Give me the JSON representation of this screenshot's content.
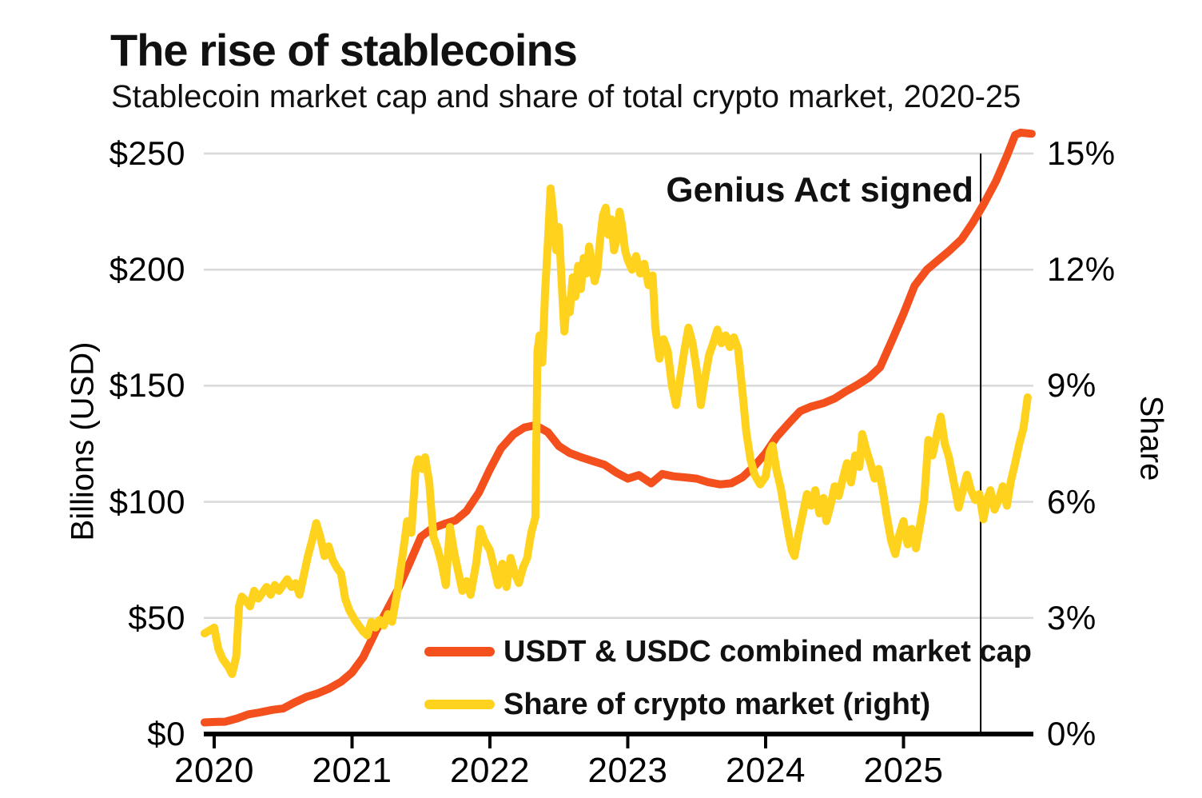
{
  "title": "The rise of stablecoins",
  "subtitle": "Stablecoin market cap and share of total crypto market, 2020-25",
  "axes": {
    "left_title": "Billions (USD)",
    "right_title": "Share"
  },
  "colors": {
    "marketcap_line": "#F4501E",
    "share_line": "#FFD21E",
    "gridline": "#D9D9D9",
    "axis": "#000000",
    "annotation_line": "#000000"
  },
  "chart_data": {
    "type": "line",
    "title": "The rise of stablecoins",
    "subtitle": "Stablecoin market cap and share of total crypto market, 2020-25",
    "x_range": [
      2019.93,
      2025.93
    ],
    "x_tick_years": [
      2020,
      2021,
      2022,
      2023,
      2024,
      2025
    ],
    "x_tick_labels": [
      "2020",
      "2021",
      "2022",
      "2023",
      "2024",
      "2025"
    ],
    "grid": "horizontal",
    "legend_position": "inside-lower-center",
    "left_axis": {
      "label": "Billions (USD)",
      "range": [
        0,
        250
      ],
      "ticks": [
        0,
        50,
        100,
        150,
        200,
        250
      ],
      "tick_labels": [
        "$0",
        "$50",
        "$100",
        "$150",
        "$200",
        "$250"
      ]
    },
    "right_axis": {
      "label": "Share",
      "range": [
        0,
        15
      ],
      "ticks": [
        0,
        3,
        6,
        9,
        12,
        15
      ],
      "tick_labels": [
        "0%",
        "3%",
        "6%",
        "9%",
        "12%",
        "15%"
      ]
    },
    "annotation": {
      "text": "Genius Act signed",
      "x_year": 2025.56
    },
    "series": [
      {
        "name": "USDT & USDC combined market cap",
        "axis": "left",
        "color": "#F4501E",
        "units": "billions USD",
        "points": [
          [
            2019.93,
            5
          ],
          [
            2020.0,
            5.2
          ],
          [
            2020.08,
            5.3
          ],
          [
            2020.17,
            6.8
          ],
          [
            2020.25,
            8.5
          ],
          [
            2020.33,
            9.3
          ],
          [
            2020.42,
            10.4
          ],
          [
            2020.5,
            11
          ],
          [
            2020.58,
            13.5
          ],
          [
            2020.67,
            16
          ],
          [
            2020.75,
            17.5
          ],
          [
            2020.83,
            19.5
          ],
          [
            2020.92,
            22.5
          ],
          [
            2021.0,
            26.5
          ],
          [
            2021.08,
            33
          ],
          [
            2021.17,
            44
          ],
          [
            2021.25,
            53
          ],
          [
            2021.33,
            62
          ],
          [
            2021.42,
            74
          ],
          [
            2021.5,
            85
          ],
          [
            2021.58,
            88.5
          ],
          [
            2021.67,
            90.5
          ],
          [
            2021.75,
            92
          ],
          [
            2021.83,
            96
          ],
          [
            2021.92,
            104
          ],
          [
            2022.0,
            114
          ],
          [
            2022.08,
            123
          ],
          [
            2022.17,
            129
          ],
          [
            2022.25,
            132
          ],
          [
            2022.33,
            133
          ],
          [
            2022.42,
            130
          ],
          [
            2022.5,
            124
          ],
          [
            2022.58,
            121
          ],
          [
            2022.67,
            119
          ],
          [
            2022.75,
            117.5
          ],
          [
            2022.83,
            116
          ],
          [
            2022.92,
            112.5
          ],
          [
            2023.0,
            110
          ],
          [
            2023.08,
            111.5
          ],
          [
            2023.17,
            108
          ],
          [
            2023.25,
            112
          ],
          [
            2023.33,
            111
          ],
          [
            2023.42,
            110.5
          ],
          [
            2023.5,
            110
          ],
          [
            2023.58,
            108.5
          ],
          [
            2023.67,
            107.5
          ],
          [
            2023.75,
            108
          ],
          [
            2023.83,
            110.5
          ],
          [
            2023.92,
            115.5
          ],
          [
            2024.0,
            121
          ],
          [
            2024.08,
            128
          ],
          [
            2024.17,
            134
          ],
          [
            2024.25,
            139
          ],
          [
            2024.33,
            141
          ],
          [
            2024.42,
            142.5
          ],
          [
            2024.5,
            144.5
          ],
          [
            2024.58,
            147.5
          ],
          [
            2024.67,
            150.5
          ],
          [
            2024.75,
            153.5
          ],
          [
            2024.83,
            158
          ],
          [
            2024.92,
            170
          ],
          [
            2025.0,
            181
          ],
          [
            2025.08,
            193
          ],
          [
            2025.17,
            200
          ],
          [
            2025.25,
            204
          ],
          [
            2025.33,
            208
          ],
          [
            2025.42,
            213
          ],
          [
            2025.5,
            220
          ],
          [
            2025.58,
            228
          ],
          [
            2025.67,
            238
          ],
          [
            2025.75,
            249
          ],
          [
            2025.81,
            258
          ],
          [
            2025.85,
            259
          ],
          [
            2025.93,
            258.5
          ]
        ]
      },
      {
        "name": "Share of crypto market (right)",
        "axis": "right",
        "color": "#FFD21E",
        "units": "percent",
        "points": [
          [
            2019.93,
            2.6
          ],
          [
            2020.0,
            2.75
          ],
          [
            2020.03,
            2.2
          ],
          [
            2020.06,
            1.95
          ],
          [
            2020.1,
            1.75
          ],
          [
            2020.13,
            1.55
          ],
          [
            2020.16,
            2.0
          ],
          [
            2020.18,
            3.3
          ],
          [
            2020.2,
            3.55
          ],
          [
            2020.23,
            3.45
          ],
          [
            2020.26,
            3.3
          ],
          [
            2020.29,
            3.7
          ],
          [
            2020.32,
            3.5
          ],
          [
            2020.35,
            3.65
          ],
          [
            2020.38,
            3.8
          ],
          [
            2020.41,
            3.6
          ],
          [
            2020.44,
            3.85
          ],
          [
            2020.47,
            3.7
          ],
          [
            2020.5,
            3.85
          ],
          [
            2020.53,
            4.0
          ],
          [
            2020.56,
            3.8
          ],
          [
            2020.59,
            3.9
          ],
          [
            2020.62,
            3.6
          ],
          [
            2020.65,
            4.1
          ],
          [
            2020.68,
            4.6
          ],
          [
            2020.71,
            5.0
          ],
          [
            2020.74,
            5.45
          ],
          [
            2020.77,
            5.1
          ],
          [
            2020.8,
            4.6
          ],
          [
            2020.83,
            4.85
          ],
          [
            2020.86,
            4.5
          ],
          [
            2020.89,
            4.3
          ],
          [
            2020.92,
            4.15
          ],
          [
            2020.95,
            3.5
          ],
          [
            2020.98,
            3.2
          ],
          [
            2021.02,
            2.95
          ],
          [
            2021.05,
            2.8
          ],
          [
            2021.08,
            2.65
          ],
          [
            2021.11,
            2.55
          ],
          [
            2021.14,
            2.9
          ],
          [
            2021.17,
            2.75
          ],
          [
            2021.2,
            2.95
          ],
          [
            2021.23,
            2.8
          ],
          [
            2021.26,
            3.1
          ],
          [
            2021.29,
            2.9
          ],
          [
            2021.33,
            3.7
          ],
          [
            2021.37,
            4.7
          ],
          [
            2021.4,
            5.5
          ],
          [
            2021.43,
            5.2
          ],
          [
            2021.46,
            6.8
          ],
          [
            2021.48,
            7.1
          ],
          [
            2021.51,
            6.85
          ],
          [
            2021.53,
            7.15
          ],
          [
            2021.56,
            6.5
          ],
          [
            2021.59,
            5.1
          ],
          [
            2021.62,
            4.8
          ],
          [
            2021.65,
            4.4
          ],
          [
            2021.68,
            3.85
          ],
          [
            2021.71,
            5.35
          ],
          [
            2021.74,
            4.7
          ],
          [
            2021.77,
            4.2
          ],
          [
            2021.8,
            3.7
          ],
          [
            2021.83,
            3.95
          ],
          [
            2021.86,
            3.6
          ],
          [
            2021.9,
            4.4
          ],
          [
            2021.93,
            5.3
          ],
          [
            2021.96,
            5.0
          ],
          [
            2022.0,
            4.75
          ],
          [
            2022.03,
            4.3
          ],
          [
            2022.06,
            3.85
          ],
          [
            2022.09,
            4.4
          ],
          [
            2022.12,
            3.8
          ],
          [
            2022.15,
            4.55
          ],
          [
            2022.18,
            4.15
          ],
          [
            2022.21,
            3.9
          ],
          [
            2022.24,
            4.3
          ],
          [
            2022.27,
            4.55
          ],
          [
            2022.3,
            5.2
          ],
          [
            2022.33,
            5.6
          ],
          [
            2022.345,
            9.9
          ],
          [
            2022.36,
            10.3
          ],
          [
            2022.38,
            9.6
          ],
          [
            2022.4,
            11.4
          ],
          [
            2022.42,
            12.7
          ],
          [
            2022.44,
            14.1
          ],
          [
            2022.46,
            13.4
          ],
          [
            2022.48,
            12.5
          ],
          [
            2022.5,
            13.1
          ],
          [
            2022.52,
            11.7
          ],
          [
            2022.54,
            10.4
          ],
          [
            2022.56,
            11.2
          ],
          [
            2022.58,
            10.9
          ],
          [
            2022.6,
            11.8
          ],
          [
            2022.62,
            11.3
          ],
          [
            2022.64,
            12.1
          ],
          [
            2022.66,
            11.5
          ],
          [
            2022.68,
            12.3
          ],
          [
            2022.7,
            11.9
          ],
          [
            2022.72,
            12.6
          ],
          [
            2022.74,
            12.1
          ],
          [
            2022.76,
            11.7
          ],
          [
            2022.78,
            12.0
          ],
          [
            2022.8,
            12.8
          ],
          [
            2022.82,
            13.4
          ],
          [
            2022.84,
            13.6
          ],
          [
            2022.86,
            12.9
          ],
          [
            2022.88,
            13.3
          ],
          [
            2022.9,
            12.5
          ],
          [
            2022.92,
            12.8
          ],
          [
            2022.94,
            13.5
          ],
          [
            2022.96,
            13.1
          ],
          [
            2022.98,
            12.5
          ],
          [
            2023.0,
            12.25
          ],
          [
            2023.03,
            12.0
          ],
          [
            2023.06,
            12.35
          ],
          [
            2023.09,
            11.9
          ],
          [
            2023.12,
            12.15
          ],
          [
            2023.15,
            11.6
          ],
          [
            2023.18,
            11.85
          ],
          [
            2023.2,
            10.5
          ],
          [
            2023.23,
            9.7
          ],
          [
            2023.26,
            10.2
          ],
          [
            2023.29,
            9.9
          ],
          [
            2023.32,
            9.0
          ],
          [
            2023.35,
            8.5
          ],
          [
            2023.38,
            9.2
          ],
          [
            2023.41,
            9.9
          ],
          [
            2023.44,
            10.5
          ],
          [
            2023.47,
            10.1
          ],
          [
            2023.5,
            9.4
          ],
          [
            2023.53,
            8.5
          ],
          [
            2023.56,
            9.2
          ],
          [
            2023.59,
            9.8
          ],
          [
            2023.62,
            10.1
          ],
          [
            2023.65,
            10.45
          ],
          [
            2023.68,
            10.1
          ],
          [
            2023.71,
            10.3
          ],
          [
            2023.74,
            10.0
          ],
          [
            2023.77,
            10.25
          ],
          [
            2023.8,
            9.95
          ],
          [
            2023.83,
            8.9
          ],
          [
            2023.86,
            7.8
          ],
          [
            2023.89,
            7.1
          ],
          [
            2023.92,
            6.7
          ],
          [
            2023.96,
            6.45
          ],
          [
            2024.0,
            6.65
          ],
          [
            2024.03,
            7.3
          ],
          [
            2024.05,
            7.45
          ],
          [
            2024.08,
            6.8
          ],
          [
            2024.11,
            6.35
          ],
          [
            2024.14,
            5.7
          ],
          [
            2024.17,
            5.1
          ],
          [
            2024.19,
            4.75
          ],
          [
            2024.21,
            4.6
          ],
          [
            2024.24,
            5.2
          ],
          [
            2024.27,
            5.7
          ],
          [
            2024.3,
            6.2
          ],
          [
            2024.33,
            5.9
          ],
          [
            2024.36,
            6.3
          ],
          [
            2024.39,
            5.7
          ],
          [
            2024.42,
            6.1
          ],
          [
            2024.44,
            5.5
          ],
          [
            2024.47,
            5.9
          ],
          [
            2024.5,
            6.4
          ],
          [
            2024.53,
            6.15
          ],
          [
            2024.56,
            6.6
          ],
          [
            2024.59,
            7.0
          ],
          [
            2024.62,
            6.5
          ],
          [
            2024.65,
            7.2
          ],
          [
            2024.68,
            6.9
          ],
          [
            2024.7,
            7.75
          ],
          [
            2024.73,
            7.35
          ],
          [
            2024.76,
            7.0
          ],
          [
            2024.79,
            6.6
          ],
          [
            2024.82,
            6.85
          ],
          [
            2024.85,
            6.3
          ],
          [
            2024.88,
            5.6
          ],
          [
            2024.91,
            5.0
          ],
          [
            2024.94,
            4.65
          ],
          [
            2024.97,
            5.15
          ],
          [
            2025.0,
            5.5
          ],
          [
            2025.03,
            4.9
          ],
          [
            2025.06,
            5.3
          ],
          [
            2025.09,
            4.8
          ],
          [
            2025.12,
            5.4
          ],
          [
            2025.15,
            6.05
          ],
          [
            2025.18,
            7.6
          ],
          [
            2025.21,
            7.2
          ],
          [
            2025.24,
            7.7
          ],
          [
            2025.27,
            8.2
          ],
          [
            2025.3,
            7.5
          ],
          [
            2025.33,
            7.15
          ],
          [
            2025.36,
            6.6
          ],
          [
            2025.4,
            5.85
          ],
          [
            2025.43,
            6.3
          ],
          [
            2025.46,
            6.7
          ],
          [
            2025.49,
            6.3
          ],
          [
            2025.52,
            6.05
          ],
          [
            2025.55,
            6.2
          ],
          [
            2025.58,
            5.55
          ],
          [
            2025.61,
            6.1
          ],
          [
            2025.63,
            6.3
          ],
          [
            2025.66,
            5.8
          ],
          [
            2025.69,
            6.05
          ],
          [
            2025.72,
            6.4
          ],
          [
            2025.75,
            5.9
          ],
          [
            2025.78,
            6.55
          ],
          [
            2025.81,
            7.0
          ],
          [
            2025.84,
            7.5
          ],
          [
            2025.87,
            7.9
          ],
          [
            2025.9,
            8.7
          ]
        ]
      }
    ]
  }
}
